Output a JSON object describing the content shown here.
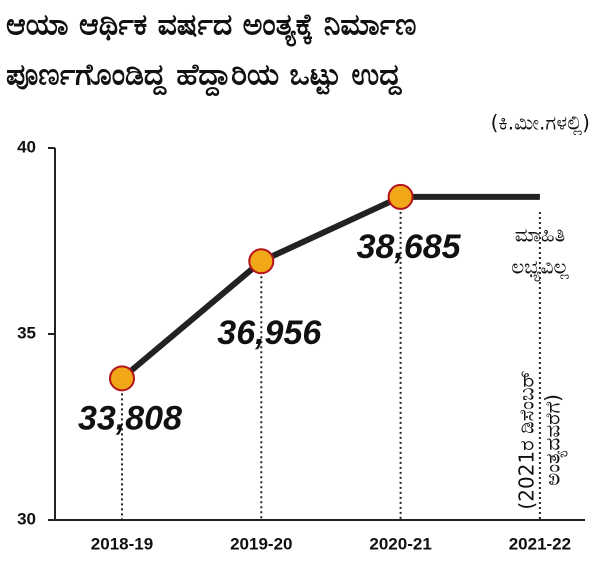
{
  "chart_data": {
    "type": "line",
    "title": [
      "ಆಯಾ ಆರ್ಥಿಕ ವರ್ಷದ ಅಂತ್ಯಕ್ಕೆ ನಿರ್ಮಾಣ",
      "ಪೂರ್ಣಗೊಂಡಿದ್ದ ಹೆದ್ದಾರಿಯ ಒಟ್ಟು ಉದ್ದ"
    ],
    "unit_label": "(ಕಿ.ಮೀ.ಗಳಲ್ಲಿ)",
    "categories": [
      "2018-19",
      "2019-20",
      "2020-21",
      "2021-22"
    ],
    "series": [
      {
        "name": "ಹೆದ್ದಾರಿ ಉದ್ದ",
        "color": "#222222",
        "marker_color": "#f0a818",
        "values": [
          33.808,
          36.956,
          38.685,
          null
        ],
        "value_labels": [
          "33,808",
          "36,956",
          "38,685",
          null
        ]
      }
    ],
    "ylim": [
      30,
      40
    ],
    "yticks": [
      30,
      35,
      40
    ],
    "annotations": {
      "not_available": [
        "ಮಾಹಿತಿ",
        "ಲಭ್ಯವಿಲ್ಲ"
      ],
      "note": [
        "(2021ರ ಡಿಸೆಂಬರ್",
        "ಅಂತ್ಯದವರೆಗೆ)"
      ]
    }
  }
}
